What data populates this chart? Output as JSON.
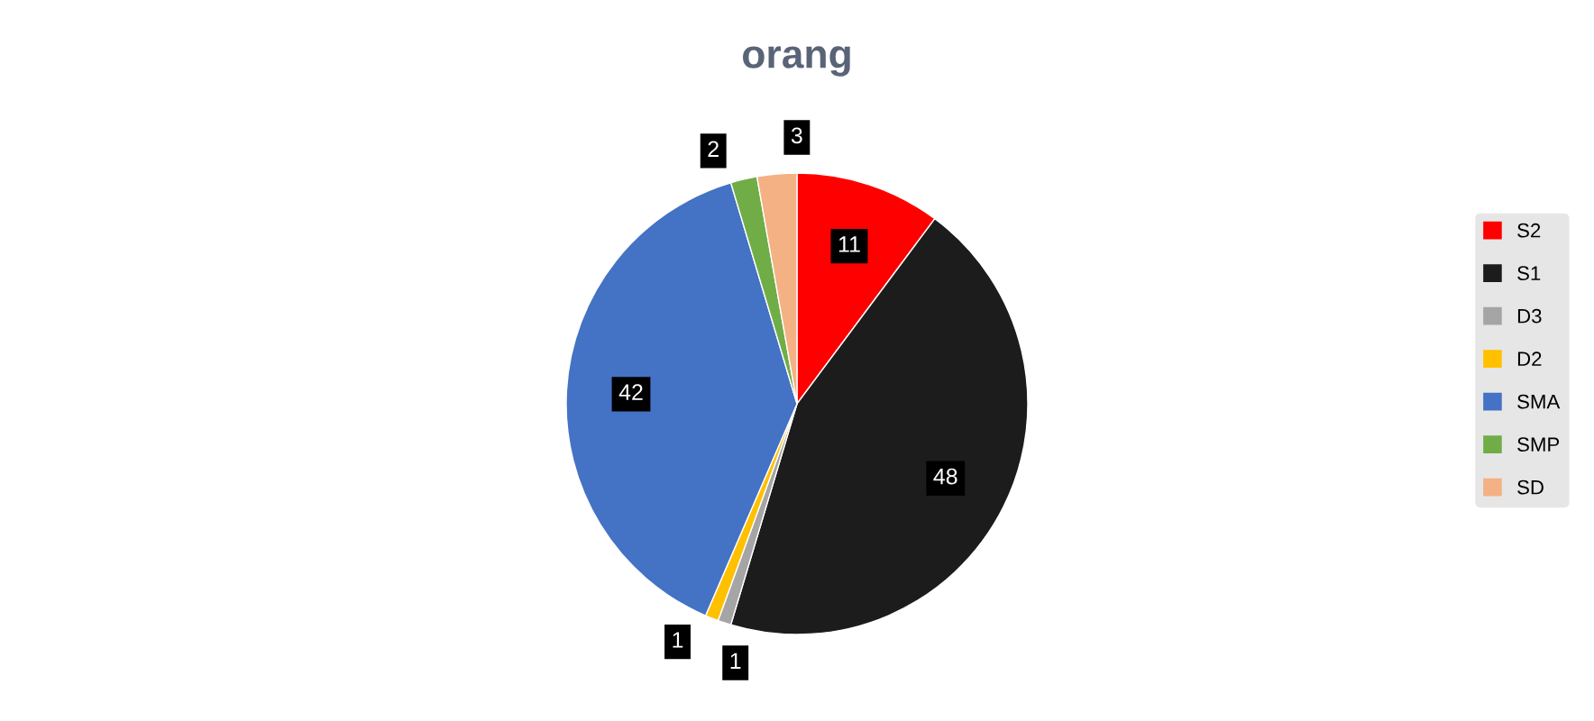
{
  "chart_data": {
    "type": "pie",
    "title": "orang",
    "categories": [
      "S2",
      "S1",
      "D3",
      "D2",
      "SMA",
      "SMP",
      "SD"
    ],
    "values": [
      11,
      48,
      1,
      1,
      42,
      2,
      3
    ],
    "colors": [
      "#ff0000",
      "#1c1c1c",
      "#a5a5a5",
      "#ffc000",
      "#4472c4",
      "#70ad47",
      "#f4b183"
    ],
    "data_labels": true,
    "legend": "right"
  }
}
